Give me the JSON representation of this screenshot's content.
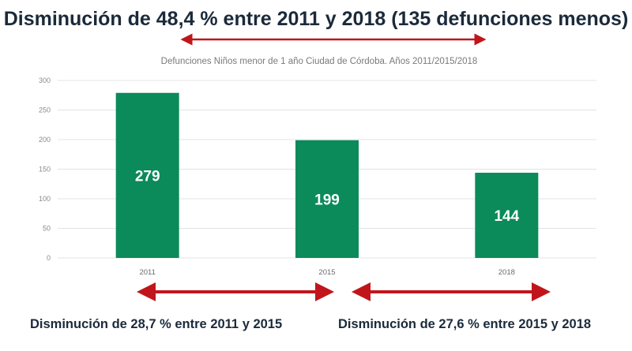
{
  "headline": "Disminución de 48,4 % entre 2011 y 2018 (135 defunciones menos)",
  "footnotes": {
    "left": "Disminución de 28,7 % entre 2011 y 2015",
    "right": "Disminución de 27,6 % entre 2015 y 2018"
  },
  "colors": {
    "bar": "#0b8a5a",
    "arrow": "#c0161b",
    "grid": "#e3e3e3",
    "text": "#1b2a3a"
  },
  "chart_data": {
    "type": "bar",
    "title": "Defunciones Niños menor de 1 año Ciudad de Córdoba. Años 2011/2015/2018",
    "categories": [
      "2011",
      "2015",
      "2018"
    ],
    "values": [
      279,
      199,
      144
    ],
    "ylim": [
      0,
      300
    ],
    "yticks": [
      0,
      50,
      100,
      150,
      200,
      250,
      300
    ],
    "grid": true,
    "legend": "none",
    "data_labels": [
      "279",
      "199",
      "144"
    ]
  }
}
